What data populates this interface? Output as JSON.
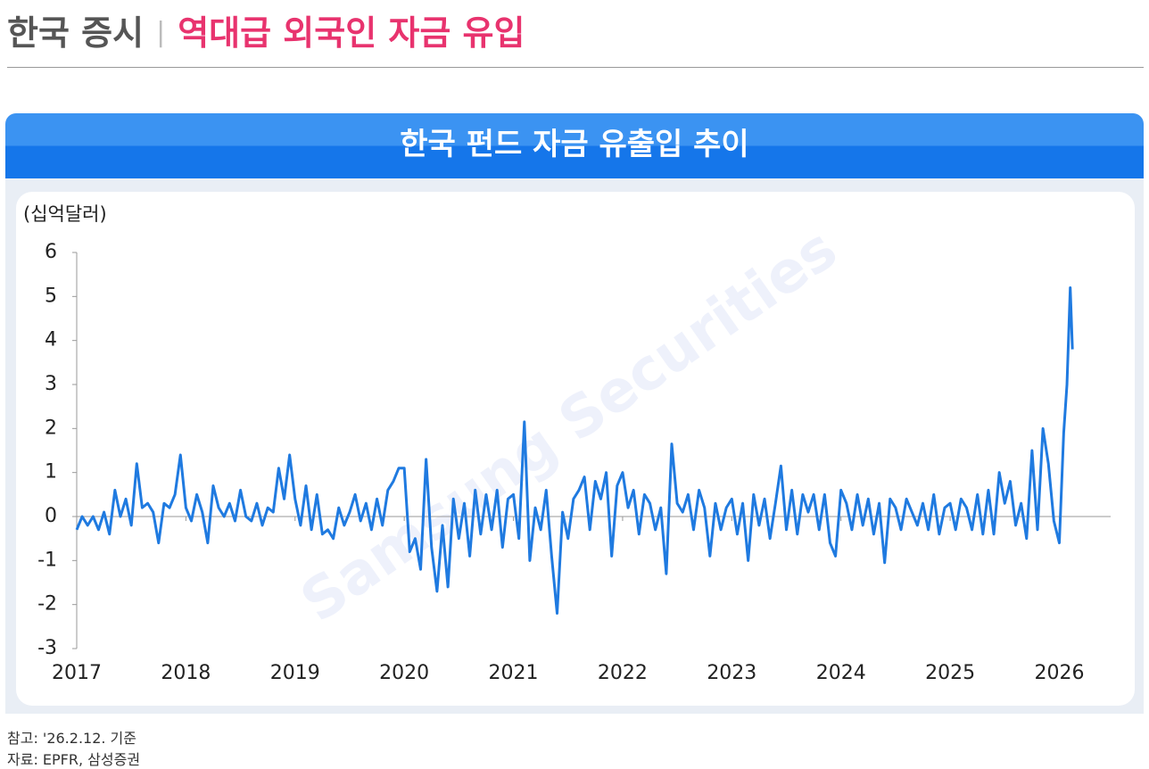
{
  "header": {
    "section": "한국 증시",
    "headline": "역대급 외국인 자금 유입"
  },
  "chart_data": {
    "type": "line",
    "title": "한국 펀드 자금 유출입 추이",
    "y_label": "(십억달러)",
    "watermark": "Samsung Securities",
    "xlim": [
      2017,
      2026.47
    ],
    "xticks": [
      2017,
      2018,
      2019,
      2020,
      2021,
      2022,
      2023,
      2024,
      2025,
      2026
    ],
    "ylim": [
      -3,
      6
    ],
    "yticks": [
      -3,
      -2,
      -1,
      0,
      1,
      2,
      3,
      4,
      5,
      6
    ],
    "x": [
      2017,
      2017.05,
      2017.1,
      2017.15,
      2017.2,
      2017.25,
      2017.3,
      2017.35,
      2017.4,
      2017.45,
      2017.5,
      2017.55,
      2017.6,
      2017.65,
      2017.7,
      2017.75,
      2017.8,
      2017.85,
      2017.9,
      2017.95,
      2018,
      2018.05,
      2018.1,
      2018.15,
      2018.2,
      2018.25,
      2018.3,
      2018.35,
      2018.4,
      2018.45,
      2018.5,
      2018.55,
      2018.6,
      2018.65,
      2018.7,
      2018.75,
      2018.8,
      2018.85,
      2018.9,
      2018.95,
      2019,
      2019.05,
      2019.1,
      2019.15,
      2019.2,
      2019.25,
      2019.3,
      2019.35,
      2019.4,
      2019.45,
      2019.5,
      2019.55,
      2019.6,
      2019.65,
      2019.7,
      2019.75,
      2019.8,
      2019.85,
      2019.9,
      2019.95,
      2020,
      2020.05,
      2020.1,
      2020.15,
      2020.2,
      2020.25,
      2020.3,
      2020.35,
      2020.4,
      2020.45,
      2020.5,
      2020.55,
      2020.6,
      2020.65,
      2020.7,
      2020.75,
      2020.8,
      2020.85,
      2020.9,
      2020.95,
      2021,
      2021.05,
      2021.1,
      2021.15,
      2021.2,
      2021.25,
      2021.3,
      2021.35,
      2021.4,
      2021.45,
      2021.5,
      2021.55,
      2021.6,
      2021.65,
      2021.7,
      2021.75,
      2021.8,
      2021.85,
      2021.9,
      2021.95,
      2022,
      2022.05,
      2022.1,
      2022.15,
      2022.2,
      2022.25,
      2022.3,
      2022.35,
      2022.4,
      2022.45,
      2022.5,
      2022.55,
      2022.6,
      2022.65,
      2022.7,
      2022.75,
      2022.8,
      2022.85,
      2022.9,
      2022.95,
      2023,
      2023.05,
      2023.1,
      2023.15,
      2023.2,
      2023.25,
      2023.3,
      2023.35,
      2023.4,
      2023.45,
      2023.5,
      2023.55,
      2023.6,
      2023.65,
      2023.7,
      2023.75,
      2023.8,
      2023.85,
      2023.9,
      2023.95,
      2024,
      2024.05,
      2024.1,
      2024.15,
      2024.2,
      2024.25,
      2024.3,
      2024.35,
      2024.4,
      2024.45,
      2024.5,
      2024.55,
      2024.6,
      2024.65,
      2024.7,
      2024.75,
      2024.8,
      2024.85,
      2024.9,
      2024.95,
      2025,
      2025.05,
      2025.1,
      2025.15,
      2025.2,
      2025.25,
      2025.3,
      2025.35,
      2025.4,
      2025.45,
      2025.5,
      2025.55,
      2025.6,
      2025.65,
      2025.7,
      2025.75,
      2025.8,
      2025.85,
      2025.9,
      2025.95,
      2026,
      2026.04,
      2026.07,
      2026.1,
      2026.12
    ],
    "series": [
      {
        "color": "#1f7ae0",
        "values": [
          -0.3,
          0,
          -0.2,
          0,
          -0.3,
          0.1,
          -0.4,
          0.6,
          0,
          0.4,
          -0.2,
          1.2,
          0.2,
          0.3,
          0.1,
          -0.6,
          0.3,
          0.2,
          0.5,
          1.4,
          0.2,
          -0.1,
          0.5,
          0.1,
          -0.6,
          0.7,
          0.2,
          0,
          0.3,
          -0.1,
          0.6,
          0,
          -0.1,
          0.3,
          -0.2,
          0.2,
          0.1,
          1.1,
          0.4,
          1.4,
          0.4,
          -0.2,
          0.7,
          -0.3,
          0.5,
          -0.4,
          -0.3,
          -0.5,
          0.2,
          -0.2,
          0.1,
          0.5,
          -0.1,
          0.3,
          -0.3,
          0.4,
          -0.2,
          0.6,
          0.8,
          1.1,
          1.1,
          -0.8,
          -0.5,
          -1.2,
          1.3,
          -0.7,
          -1.7,
          -0.2,
          -1.6,
          0.4,
          -0.5,
          0.3,
          -0.9,
          0.6,
          -0.4,
          0.5,
          -0.3,
          0.6,
          -0.7,
          0.4,
          0.5,
          -0.5,
          2.15,
          -1.0,
          0.2,
          -0.3,
          0.6,
          -0.9,
          -2.2,
          0.1,
          -0.5,
          0.4,
          0.6,
          0.9,
          -0.3,
          0.8,
          0.4,
          1.0,
          -0.9,
          0.7,
          1.0,
          0.2,
          0.6,
          -0.4,
          0.5,
          0.3,
          -0.3,
          0.2,
          -1.3,
          1.65,
          0.3,
          0.1,
          0.5,
          -0.3,
          0.6,
          0.2,
          -0.9,
          0.3,
          -0.3,
          0.2,
          0.4,
          -0.4,
          0.3,
          -1.0,
          0.5,
          -0.2,
          0.4,
          -0.5,
          0.3,
          1.15,
          -0.3,
          0.6,
          -0.4,
          0.5,
          0.1,
          0.5,
          -0.3,
          0.5,
          -0.6,
          -0.9,
          0.6,
          0.3,
          -0.3,
          0.5,
          -0.2,
          0.4,
          -0.4,
          0.3,
          -1.05,
          0.4,
          0.2,
          -0.3,
          0.4,
          0.1,
          -0.2,
          0.3,
          -0.3,
          0.5,
          -0.4,
          0.2,
          0.3,
          -0.3,
          0.4,
          0.2,
          -0.3,
          0.5,
          -0.4,
          0.6,
          -0.4,
          1.0,
          0.3,
          0.8,
          -0.2,
          0.3,
          -0.5,
          1.5,
          -0.3,
          2.0,
          1.2,
          -0.1,
          -0.6,
          1.9,
          3.0,
          5.2,
          3.8
        ]
      }
    ]
  },
  "notes": [
    "참고: '26.2.12. 기준",
    "자료: EPFR, 삼성증권"
  ]
}
